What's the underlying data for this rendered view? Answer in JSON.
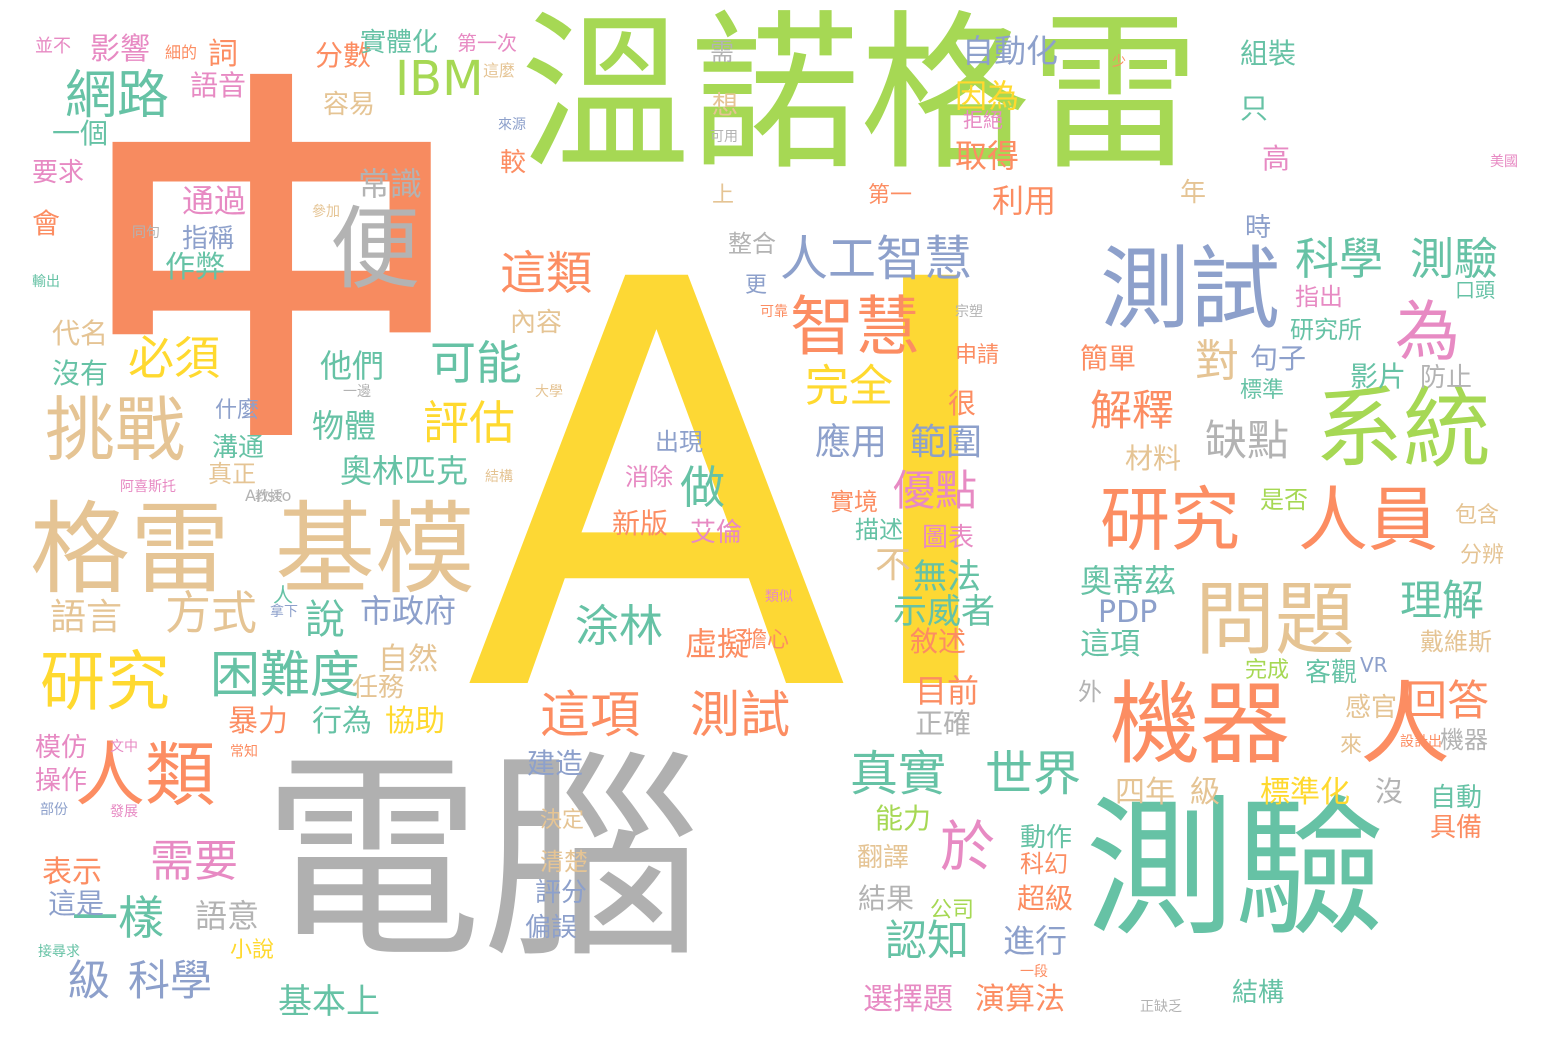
{
  "words": [
    {
      "text": "中",
      "color": "#f78b60"
    },
    {
      "text": "AI",
      "color": "#fdd834"
    },
    {
      "text": "電腦",
      "color": "#b0b0b0"
    },
    {
      "text": "溫諾格雷",
      "color": "#a6d854"
    },
    {
      "text": "測驗",
      "color": "#66c2a5"
    },
    {
      "text": "格雷",
      "color": "#e5c494"
    },
    {
      "text": "基模",
      "color": "#e5c494"
    },
    {
      "text": "便",
      "color": "#b3b3b3"
    },
    {
      "text": "測試",
      "color": "#8da0cb"
    },
    {
      "text": "機器",
      "color": "#fc8d62"
    },
    {
      "text": "人",
      "color": "#fc8d62"
    },
    {
      "text": "系統",
      "color": "#a6d854"
    },
    {
      "text": "問題",
      "color": "#e5c494"
    },
    {
      "text": "研究",
      "color": "#fc8d62"
    },
    {
      "text": "人員",
      "color": "#fc8d62"
    },
    {
      "text": "挑戰",
      "color": "#e5c494"
    },
    {
      "text": "智慧",
      "color": "#fc8d62"
    },
    {
      "text": "研究",
      "color": "#ffd92f"
    },
    {
      "text": "人類",
      "color": "#fc8d62"
    },
    {
      "text": "網路",
      "color": "#66c2a5"
    },
    {
      "text": "IBM",
      "color": "#a6d854"
    },
    {
      "text": "這項",
      "color": "#fc8d62"
    },
    {
      "text": "測試",
      "color": "#fc8d62"
    },
    {
      "text": "為",
      "color": "#e78ac3"
    },
    {
      "text": "人工智慧",
      "color": "#8da0cb"
    },
    {
      "text": "科學",
      "color": "#66c2a5"
    },
    {
      "text": "測驗",
      "color": "#66c2a5"
    },
    {
      "text": "真實",
      "color": "#66c2a5"
    },
    {
      "text": "世界",
      "color": "#66c2a5"
    },
    {
      "text": "困難度",
      "color": "#66c2a5"
    },
    {
      "text": "方式",
      "color": "#e5c494"
    },
    {
      "text": "這類",
      "color": "#fc8d62"
    },
    {
      "text": "必須",
      "color": "#ffd92f"
    },
    {
      "text": "可能",
      "color": "#66c2a5"
    },
    {
      "text": "評估",
      "color": "#ffd92f"
    },
    {
      "text": "完全",
      "color": "#ffd92f"
    },
    {
      "text": "解釋",
      "color": "#fc8d62"
    },
    {
      "text": "對",
      "color": "#e5c494"
    },
    {
      "text": "缺點",
      "color": "#b3b3b3"
    },
    {
      "text": "理解",
      "color": "#66c2a5"
    },
    {
      "text": "回答",
      "color": "#fc8d62"
    },
    {
      "text": "於",
      "color": "#e78ac3"
    },
    {
      "text": "一樣",
      "color": "#66c2a5"
    },
    {
      "text": "需要",
      "color": "#e78ac3"
    },
    {
      "text": "級",
      "color": "#8da0cb"
    },
    {
      "text": "科學",
      "color": "#8da0cb"
    },
    {
      "text": "做",
      "color": "#66c2a5"
    },
    {
      "text": "說",
      "color": "#66c2a5"
    },
    {
      "text": "不",
      "color": "#e5c494"
    },
    {
      "text": "優點",
      "color": "#e78ac3"
    },
    {
      "text": "涂林",
      "color": "#66c2a5"
    },
    {
      "text": "認知",
      "color": "#66c2a5"
    },
    {
      "text": "應用",
      "color": "#8da0cb"
    },
    {
      "text": "範圍",
      "color": "#8da0cb"
    },
    {
      "text": "常識",
      "color": "#b3b3b3"
    },
    {
      "text": "通過",
      "color": "#e78ac3"
    },
    {
      "text": "指稱",
      "color": "#8da0cb"
    },
    {
      "text": "作弊",
      "color": "#66c2a5"
    },
    {
      "text": "分數",
      "color": "#fc8d62"
    },
    {
      "text": "容易",
      "color": "#e5c494"
    },
    {
      "text": "影響",
      "color": "#e78ac3"
    },
    {
      "text": "詞",
      "color": "#fc8d62"
    },
    {
      "text": "語音",
      "color": "#e78ac3"
    },
    {
      "text": "自動化",
      "color": "#8da0cb"
    },
    {
      "text": "因為",
      "color": "#ffd92f"
    },
    {
      "text": "取得",
      "color": "#fc8d62"
    },
    {
      "text": "利用",
      "color": "#fc8d62"
    },
    {
      "text": "整合",
      "color": "#b3b3b3"
    },
    {
      "text": "奧林匹克",
      "color": "#66c2a5"
    },
    {
      "text": "物體",
      "color": "#66c2a5"
    },
    {
      "text": "他們",
      "color": "#66c2a5"
    },
    {
      "text": "市政府",
      "color": "#8da0cb"
    },
    {
      "text": "自然",
      "color": "#e5c494"
    },
    {
      "text": "暴力",
      "color": "#fc8d62"
    },
    {
      "text": "行為",
      "color": "#66c2a5"
    },
    {
      "text": "協助",
      "color": "#ffd92f"
    },
    {
      "text": "任務",
      "color": "#e5c494"
    },
    {
      "text": "虛擬",
      "color": "#fc8d62"
    },
    {
      "text": "無法",
      "color": "#66c2a5"
    },
    {
      "text": "示威者",
      "color": "#66c2a5"
    },
    {
      "text": "目前",
      "color": "#fc8d62"
    },
    {
      "text": "奧蒂茲",
      "color": "#66c2a5"
    },
    {
      "text": "PDP",
      "color": "#8da0cb"
    },
    {
      "text": "這項",
      "color": "#66c2a5"
    },
    {
      "text": "四年",
      "color": "#e5c494"
    },
    {
      "text": "級",
      "color": "#e5c494"
    },
    {
      "text": "標準化",
      "color": "#ffd92f"
    },
    {
      "text": "沒",
      "color": "#b3b3b3"
    },
    {
      "text": "語言",
      "color": "#e5c494"
    },
    {
      "text": "模仿",
      "color": "#e78ac3"
    },
    {
      "text": "操作",
      "color": "#e78ac3"
    },
    {
      "text": "表示",
      "color": "#fc8d62"
    },
    {
      "text": "這是",
      "color": "#8da0cb"
    },
    {
      "text": "語意",
      "color": "#b3b3b3"
    },
    {
      "text": "基本上",
      "color": "#66c2a5"
    },
    {
      "text": "建造",
      "color": "#8da0cb"
    },
    {
      "text": "選擇題",
      "color": "#e78ac3"
    },
    {
      "text": "演算法",
      "color": "#fc8d62"
    },
    {
      "text": "結果",
      "color": "#b3b3b3"
    },
    {
      "text": "進行",
      "color": "#8da0cb"
    },
    {
      "text": "超級",
      "color": "#fc8d62"
    },
    {
      "text": "翻譯",
      "color": "#e5c494"
    },
    {
      "text": "能力",
      "color": "#a6d854"
    },
    {
      "text": "動作",
      "color": "#66c2a5"
    },
    {
      "text": "科幻",
      "color": "#fc8d62"
    },
    {
      "text": "公司",
      "color": "#a6d854"
    },
    {
      "text": "評分",
      "color": "#8da0cb"
    },
    {
      "text": "偏誤",
      "color": "#8da0cb"
    },
    {
      "text": "清楚",
      "color": "#e5c494"
    },
    {
      "text": "決定",
      "color": "#e5c494"
    },
    {
      "text": "小說",
      "color": "#ffd92f"
    },
    {
      "text": "結構",
      "color": "#66c2a5"
    },
    {
      "text": "自動",
      "color": "#66c2a5"
    },
    {
      "text": "具備",
      "color": "#fc8d62"
    },
    {
      "text": "機器",
      "color": "#b3b3b3"
    },
    {
      "text": "感官",
      "color": "#e5c494"
    },
    {
      "text": "客觀",
      "color": "#66c2a5"
    },
    {
      "text": "完成",
      "color": "#a6d854"
    },
    {
      "text": "戴維斯",
      "color": "#e5c494"
    },
    {
      "text": "分辨",
      "color": "#e5c494"
    },
    {
      "text": "包含",
      "color": "#e5c494"
    },
    {
      "text": "是否",
      "color": "#a6d854"
    },
    {
      "text": "材料",
      "color": "#e5c494"
    },
    {
      "text": "影片",
      "color": "#66c2a5"
    },
    {
      "text": "防止",
      "color": "#b3b3b3"
    },
    {
      "text": "標準",
      "color": "#66c2a5"
    },
    {
      "text": "句子",
      "color": "#8da0cb"
    },
    {
      "text": "簡單",
      "color": "#fc8d62"
    },
    {
      "text": "指出",
      "color": "#e78ac3"
    },
    {
      "text": "研究所",
      "color": "#66c2a5"
    },
    {
      "text": "口頭",
      "color": "#66c2a5"
    },
    {
      "text": "時",
      "color": "#8da0cb"
    },
    {
      "text": "年",
      "color": "#e5c494"
    },
    {
      "text": "高",
      "color": "#e78ac3"
    },
    {
      "text": "組裝",
      "color": "#66c2a5"
    },
    {
      "text": "只",
      "color": "#66c2a5"
    },
    {
      "text": "實體化",
      "color": "#66c2a5"
    },
    {
      "text": "出現",
      "color": "#8da0cb"
    },
    {
      "text": "消除",
      "color": "#e78ac3"
    },
    {
      "text": "新版",
      "color": "#fc8d62"
    },
    {
      "text": "艾倫",
      "color": "#e78ac3"
    },
    {
      "text": "描述",
      "color": "#66c2a5"
    },
    {
      "text": "實境",
      "color": "#fc8d62"
    },
    {
      "text": "圖表",
      "color": "#e78ac3"
    },
    {
      "text": "敘述",
      "color": "#fc8d62"
    },
    {
      "text": "正確",
      "color": "#b3b3b3"
    },
    {
      "text": "很",
      "color": "#fc8d62"
    },
    {
      "text": "申請",
      "color": "#fc8d62"
    },
    {
      "text": "內容",
      "color": "#e5c494"
    },
    {
      "text": "更",
      "color": "#8da0cb"
    },
    {
      "text": "上",
      "color": "#e5c494"
    },
    {
      "text": "想",
      "color": "#e5c494"
    },
    {
      "text": "較",
      "color": "#fc8d62"
    },
    {
      "text": "第一",
      "color": "#fc8d62"
    },
    {
      "text": "拒絕",
      "color": "#e78ac3"
    },
    {
      "text": "需",
      "color": "#b3b3b3"
    },
    {
      "text": "外",
      "color": "#b3b3b3"
    },
    {
      "text": "VR",
      "color": "#8da0cb"
    },
    {
      "text": "來",
      "color": "#e5c494"
    },
    {
      "text": "一個",
      "color": "#66c2a5"
    },
    {
      "text": "要求",
      "color": "#e78ac3"
    },
    {
      "text": "會",
      "color": "#fc8d62"
    },
    {
      "text": "代名",
      "color": "#e5c494"
    },
    {
      "text": "沒有",
      "color": "#66c2a5"
    },
    {
      "text": "什麼",
      "color": "#8da0cb"
    },
    {
      "text": "溝通",
      "color": "#66c2a5"
    },
    {
      "text": "真正",
      "color": "#e5c494"
    },
    {
      "text": "人",
      "color": "#66c2a5"
    },
    {
      "text": "擔心",
      "color": "#fc8d62"
    },
    {
      "text": "Aristo",
      "color": "#b3b3b3"
    },
    {
      "text": "第一次",
      "color": "#e78ac3"
    },
    {
      "text": "並不",
      "color": "#e78ac3"
    },
    {
      "text": "細的",
      "color": "#fc8d62"
    },
    {
      "text": "這麼",
      "color": "#e5c494"
    },
    {
      "text": "來源",
      "color": "#8da0cb"
    },
    {
      "text": "少",
      "color": "#fc8d62"
    },
    {
      "text": "可用",
      "color": "#b3b3b3"
    },
    {
      "text": "參加",
      "color": "#e5c494"
    },
    {
      "text": "同句",
      "color": "#b3b3b3"
    },
    {
      "text": "輸出",
      "color": "#66c2a5"
    },
    {
      "text": "美國",
      "color": "#e78ac3"
    },
    {
      "text": "一邊",
      "color": "#b3b3b3"
    },
    {
      "text": "可靠",
      "color": "#fc8d62"
    },
    {
      "text": "宗塑",
      "color": "#b3b3b3"
    },
    {
      "text": "大學",
      "color": "#e5c494"
    },
    {
      "text": "文中",
      "color": "#e78ac3"
    },
    {
      "text": "結構",
      "color": "#e5c494"
    },
    {
      "text": "教授",
      "color": "#b3b3b3"
    },
    {
      "text": "拿下",
      "color": "#8da0cb"
    },
    {
      "text": "類似",
      "color": "#e78ac3"
    },
    {
      "text": "常知",
      "color": "#fc8d62"
    },
    {
      "text": "設計出",
      "color": "#fc8d62"
    },
    {
      "text": "正缺乏",
      "color": "#b3b3b3"
    },
    {
      "text": "一段",
      "color": "#fc8d62"
    },
    {
      "text": "阿喜斯托",
      "color": "#e78ac3"
    },
    {
      "text": "接尋求",
      "color": "#66c2a5"
    },
    {
      "text": "部份",
      "color": "#8da0cb"
    },
    {
      "text": "發展",
      "color": "#e78ac3"
    }
  ]
}
